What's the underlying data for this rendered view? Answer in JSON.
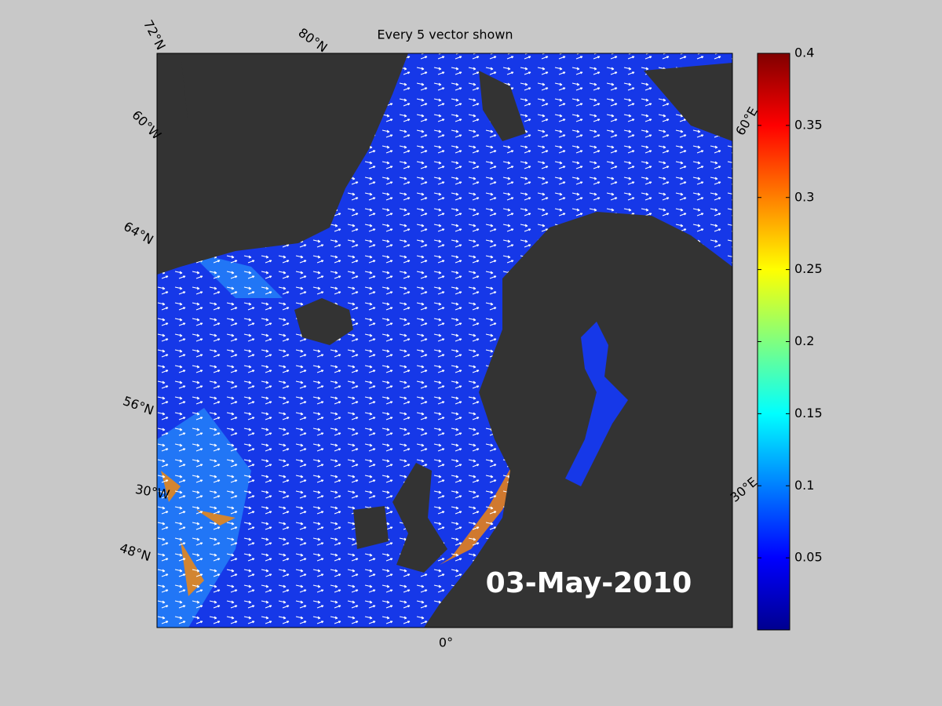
{
  "title": "Every 5 vector shown",
  "map": {
    "graticule_labels": [
      "72°N",
      "80°N",
      "60°W",
      "64°N",
      "56°N",
      "30°W",
      "48°N",
      "0°",
      "60°E",
      "30°E"
    ],
    "date": "03-May-2010"
  },
  "colorbar": {
    "lim": [
      0,
      0.4
    ],
    "ticks": [
      0.05,
      0.1,
      0.15,
      0.2,
      0.25,
      0.3,
      0.35,
      0.4
    ]
  }
}
